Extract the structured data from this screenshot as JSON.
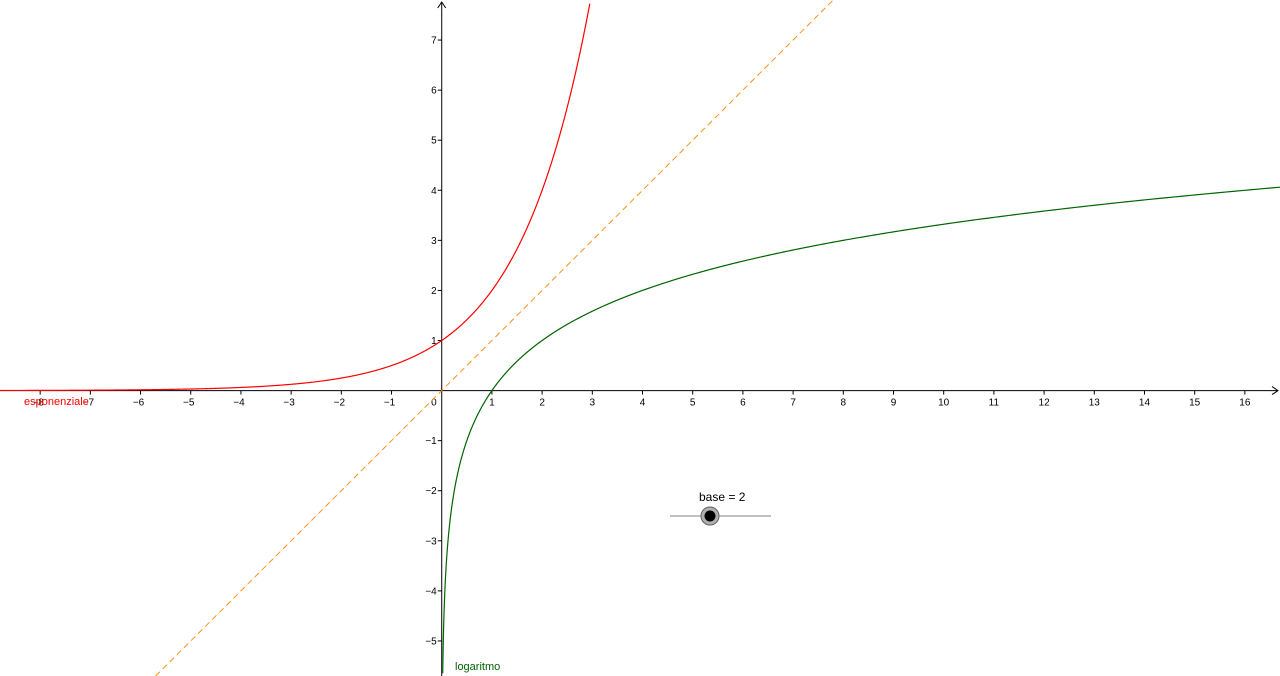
{
  "app": {
    "view": "Graphics"
  },
  "colors": {
    "axis": "#000000",
    "exponential": "#ff0000",
    "logarithm": "#006400",
    "bisector": "#ff8c1a",
    "slider_line": "#808080",
    "slider_point": "#000000"
  },
  "chart_data": {
    "type": "line",
    "title": "",
    "xlabel": "",
    "ylabel": "",
    "xlim": [
      -8.8,
      16.7
    ],
    "ylim": [
      -5.7,
      7.8
    ],
    "grid": false,
    "origin_label": "0",
    "x_ticks": [
      -8,
      -7,
      -6,
      -5,
      -4,
      -3,
      -2,
      -1,
      1,
      2,
      3,
      4,
      5,
      6,
      7,
      8,
      9,
      10,
      11,
      12,
      13,
      14,
      15,
      16
    ],
    "y_ticks": [
      -5,
      -4,
      -3,
      -2,
      -1,
      1,
      2,
      3,
      4,
      5,
      6,
      7
    ],
    "series": [
      {
        "name": "esponenziale",
        "kind": "exponential",
        "formula": "y = 2^x",
        "color": "#ff0000",
        "dash": false,
        "points": [
          [
            -8.8,
            0.002
          ],
          [
            -8,
            0.0039
          ],
          [
            -7,
            0.0078
          ],
          [
            -6,
            0.0156
          ],
          [
            -5,
            0.0313
          ],
          [
            -4,
            0.0625
          ],
          [
            -3,
            0.125
          ],
          [
            -2,
            0.25
          ],
          [
            -1,
            0.5
          ],
          [
            0,
            1
          ],
          [
            0.5,
            1.414
          ],
          [
            1,
            2
          ],
          [
            1.5,
            2.828
          ],
          [
            2,
            4
          ],
          [
            2.5,
            5.657
          ],
          [
            2.95,
            7.727
          ]
        ]
      },
      {
        "name": "logaritmo",
        "kind": "logarithm",
        "formula": "y = log_2(x)",
        "color": "#006400",
        "dash": false,
        "points": [
          [
            0.02,
            -5.644
          ],
          [
            0.0625,
            -4
          ],
          [
            0.125,
            -3
          ],
          [
            0.25,
            -2
          ],
          [
            0.5,
            -1
          ],
          [
            1,
            0
          ],
          [
            2,
            1
          ],
          [
            3,
            1.585
          ],
          [
            4,
            2
          ],
          [
            6,
            2.585
          ],
          [
            8,
            3
          ],
          [
            10,
            3.322
          ],
          [
            12,
            3.585
          ],
          [
            14,
            3.807
          ],
          [
            16,
            4
          ],
          [
            16.7,
            4.062
          ]
        ]
      },
      {
        "kind": "bisector",
        "formula": "y = x",
        "color": "#ff8c1a",
        "dash": true,
        "points": [
          [
            -5.7,
            -5.7
          ],
          [
            7.8,
            7.8
          ]
        ]
      }
    ]
  },
  "slider": {
    "name": "base",
    "label": "base = 2",
    "value": 2
  }
}
